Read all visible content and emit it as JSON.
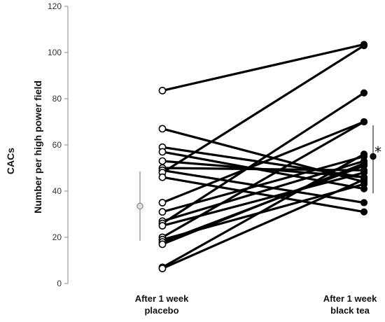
{
  "chart_data": {
    "type": "line",
    "title": "",
    "ylabel_outer": "CACs",
    "ylabel": "Number per high power field",
    "ylim": [
      0,
      120
    ],
    "yticks": [
      0,
      20,
      40,
      60,
      80,
      100,
      120
    ],
    "categories": [
      "After 1 week placebo",
      "After 1 week black tea"
    ],
    "category_lines": [
      [
        "After 1 week",
        "placebo"
      ],
      [
        "After 1 week",
        "black tea"
      ]
    ],
    "pairs": [
      [
        83.5,
        103.5
      ],
      [
        67,
        44
      ],
      [
        59,
        46
      ],
      [
        57,
        41
      ],
      [
        53,
        46
      ],
      [
        50,
        49
      ],
      [
        49,
        35
      ],
      [
        48,
        103
      ],
      [
        46,
        31
      ],
      [
        35,
        70
      ],
      [
        31,
        55
      ],
      [
        27,
        53
      ],
      [
        26,
        82.5
      ],
      [
        25,
        48
      ],
      [
        20,
        70
      ],
      [
        19,
        43
      ],
      [
        18,
        51
      ],
      [
        17,
        52
      ],
      [
        7,
        56
      ],
      [
        6.5,
        45
      ]
    ],
    "summary": [
      {
        "category": "After 1 week placebo",
        "mean": 33.5,
        "lower": 18.5,
        "upper": 48.5
      },
      {
        "category": "After 1 week black tea",
        "mean": 55,
        "lower": 39,
        "upper": 68.5
      }
    ],
    "significance_marker": "*",
    "colors": {
      "line": "#000000",
      "placebo_marker_fill": "#ffffff",
      "tea_marker_fill": "#000000",
      "summary_line": "#888888"
    }
  }
}
